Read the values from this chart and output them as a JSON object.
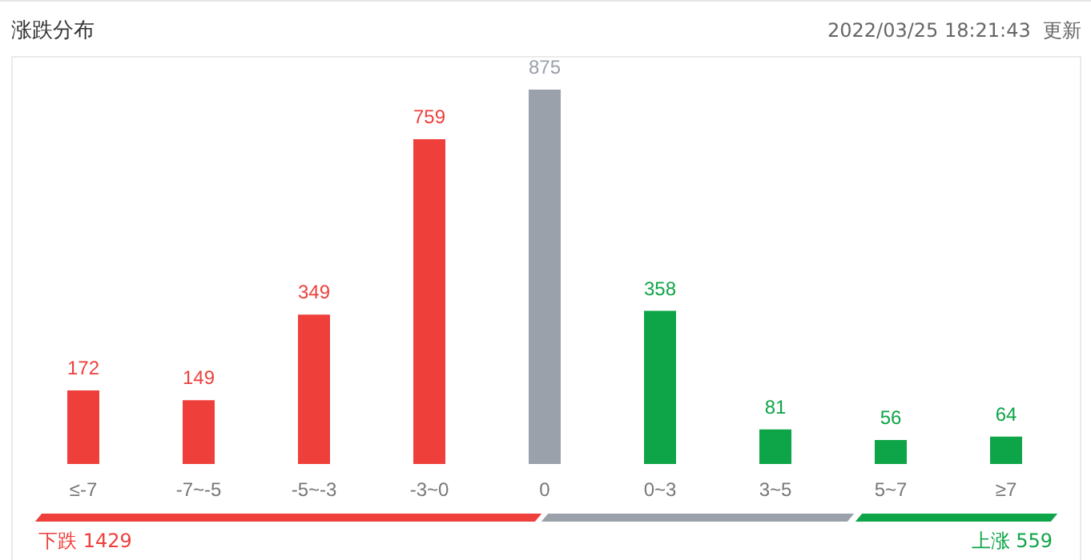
{
  "chart_data": {
    "type": "bar",
    "title": "涨跌分布",
    "subtitle": "2022/03/25 18:21:43  更新",
    "categories": [
      "≤-7",
      "-7~-5",
      "-5~-3",
      "-3~0",
      "0",
      "0~3",
      "3~5",
      "5~7",
      "≥7"
    ],
    "values": [
      172,
      149,
      349,
      759,
      875,
      358,
      81,
      56,
      64
    ],
    "colors": [
      "#ee3f3b",
      "#ee3f3b",
      "#ee3f3b",
      "#ee3f3b",
      "#9aa1ab",
      "#0ea548",
      "#0ea548",
      "#0ea548",
      "#0ea548"
    ],
    "data_labels": true,
    "annotations": [
      "下跌 1429",
      "上涨 559"
    ]
  }
}
